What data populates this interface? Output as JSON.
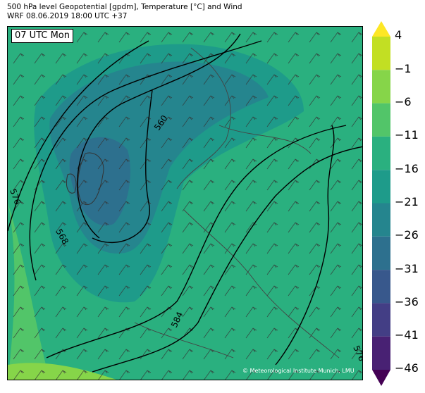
{
  "header": {
    "line1": "500 hPa level Geopotential [gpdm], Temperature [°C] and Wind",
    "line2": "WRF 08.06.2019 18:00 UTC +37"
  },
  "time_label": "07 UTC Mon",
  "credit": "© Meteorological Institute Munich, LMU",
  "contour_labels": [
    "576",
    "568",
    "560",
    "584",
    "576"
  ],
  "colorbar": {
    "ticks": [
      "4",
      "−1",
      "−6",
      "−11",
      "−16",
      "−21",
      "−26",
      "−31",
      "−36",
      "−41",
      "−46"
    ],
    "colors": [
      "#fde725",
      "#c2df23",
      "#86d549",
      "#52c569",
      "#2ab07f",
      "#1e9b8a",
      "#25858e",
      "#2d708e",
      "#38588c",
      "#433e85",
      "#482173",
      "#440154"
    ]
  }
}
